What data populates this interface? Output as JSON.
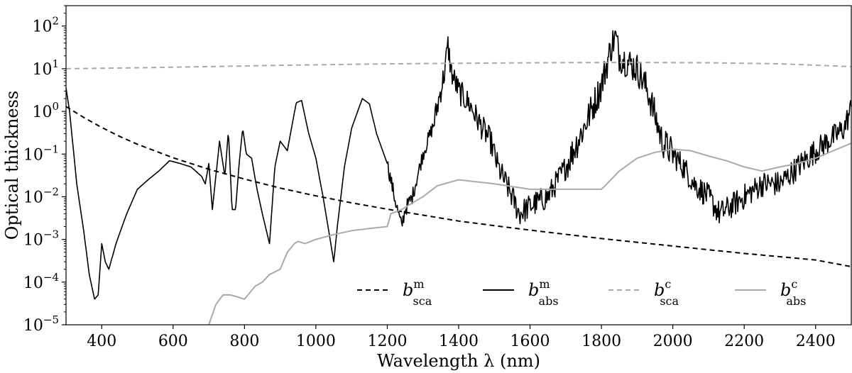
{
  "chart_data": {
    "type": "line",
    "xlabel": "Wavelength λ (nm)",
    "ylabel": "Optical thickness",
    "xlim": [
      300,
      2500
    ],
    "ylim": [
      1e-05,
      300
    ],
    "yscale": "log",
    "grid": false,
    "legend_position": "bottom-right",
    "x_ticks": [
      400,
      600,
      800,
      1000,
      1200,
      1400,
      1600,
      1800,
      2000,
      2200,
      2400
    ],
    "x_tick_labels": [
      "400",
      "600",
      "800",
      "1000",
      "1200",
      "1400",
      "1600",
      "1800",
      "2000",
      "2200",
      "2400"
    ],
    "y_ticks": [
      1e-05,
      0.0001,
      0.001,
      0.01,
      0.1,
      1,
      10,
      100
    ],
    "y_tick_labels": [
      {
        "base": "10",
        "exp": "−5"
      },
      {
        "base": "10",
        "exp": "−4"
      },
      {
        "base": "10",
        "exp": "−3"
      },
      {
        "base": "10",
        "exp": "−2"
      },
      {
        "base": "10",
        "exp": "−1"
      },
      {
        "base": "10",
        "exp": "0"
      },
      {
        "base": "10",
        "exp": "1"
      },
      {
        "base": "10",
        "exp": "2"
      }
    ],
    "series": [
      {
        "name": "b^m_sca",
        "legend_base": "b",
        "legend_sup": "m",
        "legend_sub": "sca",
        "color": "#000000",
        "dash": "dashed",
        "width": 2,
        "x": [
          300,
          350,
          400,
          450,
          500,
          600,
          700,
          800,
          900,
          1000,
          1100,
          1200,
          1300,
          1400,
          1500,
          1600,
          1800,
          2000,
          2200,
          2400,
          2500
        ],
        "y": [
          1.3,
          0.72,
          0.42,
          0.26,
          0.17,
          0.082,
          0.044,
          0.026,
          0.016,
          0.0105,
          0.0072,
          0.0051,
          0.0037,
          0.0027,
          0.0021,
          0.00165,
          0.00105,
          0.0007,
          0.00047,
          0.00033,
          0.00023
        ]
      },
      {
        "name": "b^m_abs",
        "legend_base": "b",
        "legend_sup": "m",
        "legend_sub": "abs",
        "color": "#000000",
        "dash": "solid",
        "width": 2,
        "noise": true,
        "x": [
          300,
          310,
          330,
          350,
          365,
          380,
          390,
          395,
          400,
          410,
          420,
          440,
          470,
          500,
          530,
          560,
          590,
          620,
          650,
          680,
          690,
          700,
          710,
          730,
          745,
          755,
          765,
          775,
          785,
          795,
          805,
          820,
          835,
          850,
          870,
          885,
          900,
          920,
          945,
          960,
          980,
          1000,
          1020,
          1040,
          1050,
          1060,
          1080,
          1100,
          1130,
          1150,
          1170,
          1200,
          1220,
          1240,
          1250,
          1270,
          1300,
          1330,
          1360,
          1370,
          1380,
          1400,
          1430,
          1460,
          1490,
          1510,
          1550,
          1570,
          1600,
          1650,
          1700,
          1750,
          1800,
          1830,
          1840,
          1850,
          1870,
          1900,
          1930,
          1950,
          1970,
          2000,
          2030,
          2060,
          2100,
          2130,
          2150,
          2200,
          2250,
          2300,
          2350,
          2400,
          2450,
          2480,
          2500
        ],
        "y": [
          3.5,
          1.0,
          0.02,
          0.0015,
          0.00015,
          4e-05,
          5e-05,
          0.0002,
          0.0008,
          0.0003,
          0.0002,
          0.0008,
          0.004,
          0.015,
          0.025,
          0.04,
          0.07,
          0.06,
          0.05,
          0.03,
          0.02,
          0.06,
          0.005,
          0.2,
          0.03,
          0.35,
          0.005,
          0.005,
          0.06,
          0.4,
          0.1,
          0.08,
          0.015,
          0.004,
          0.0008,
          0.05,
          0.2,
          0.12,
          1.6,
          1.8,
          0.3,
          0.08,
          0.01,
          0.001,
          0.0003,
          0.002,
          0.05,
          0.4,
          2.0,
          1.5,
          0.3,
          0.06,
          0.01,
          0.002,
          0.005,
          0.01,
          0.1,
          0.5,
          8.0,
          35.0,
          8.0,
          3.0,
          1.5,
          0.5,
          0.2,
          0.05,
          0.01,
          0.004,
          0.006,
          0.01,
          0.05,
          0.4,
          4.0,
          40.0,
          55.0,
          20.0,
          15.0,
          10.0,
          3.0,
          0.8,
          0.2,
          0.1,
          0.05,
          0.02,
          0.01,
          0.004,
          0.005,
          0.01,
          0.02,
          0.02,
          0.05,
          0.12,
          0.25,
          0.4,
          1.2
        ]
      },
      {
        "name": "b^c_sca",
        "legend_base": "b",
        "legend_sup": "c",
        "legend_sub": "sca",
        "color": "#aaaaaa",
        "dash": "dashed",
        "width": 2,
        "x": [
          300,
          500,
          700,
          900,
          1100,
          1300,
          1500,
          1700,
          1900,
          2100,
          2300,
          2500
        ],
        "y": [
          10.0,
          10.5,
          11.2,
          12.0,
          12.7,
          13.2,
          13.6,
          13.9,
          14.0,
          13.8,
          13.0,
          11.2
        ]
      },
      {
        "name": "b^c_abs",
        "legend_base": "b",
        "legend_sup": "c",
        "legend_sub": "abs",
        "color": "#aaaaaa",
        "dash": "solid",
        "width": 2,
        "x": [
          680,
          700,
          720,
          740,
          760,
          780,
          800,
          830,
          850,
          870,
          900,
          920,
          940,
          950,
          970,
          1000,
          1050,
          1100,
          1150,
          1200,
          1210,
          1240,
          1280,
          1300,
          1340,
          1400,
          1500,
          1600,
          1700,
          1800,
          1810,
          1850,
          1900,
          1950,
          2000,
          2050,
          2100,
          2150,
          2200,
          2250,
          2300,
          2350,
          2400,
          2450,
          2500
        ],
        "y": [
          5e-06,
          1e-05,
          3e-05,
          5e-05,
          5e-05,
          4.5e-05,
          4e-05,
          8e-05,
          0.0001,
          0.00015,
          0.0002,
          0.0005,
          0.0008,
          0.0009,
          0.0008,
          0.001,
          0.0013,
          0.0016,
          0.0018,
          0.002,
          0.004,
          0.005,
          0.008,
          0.01,
          0.018,
          0.025,
          0.02,
          0.015,
          0.015,
          0.015,
          0.018,
          0.04,
          0.08,
          0.11,
          0.13,
          0.12,
          0.09,
          0.07,
          0.05,
          0.04,
          0.05,
          0.06,
          0.08,
          0.12,
          0.18
        ]
      }
    ]
  }
}
